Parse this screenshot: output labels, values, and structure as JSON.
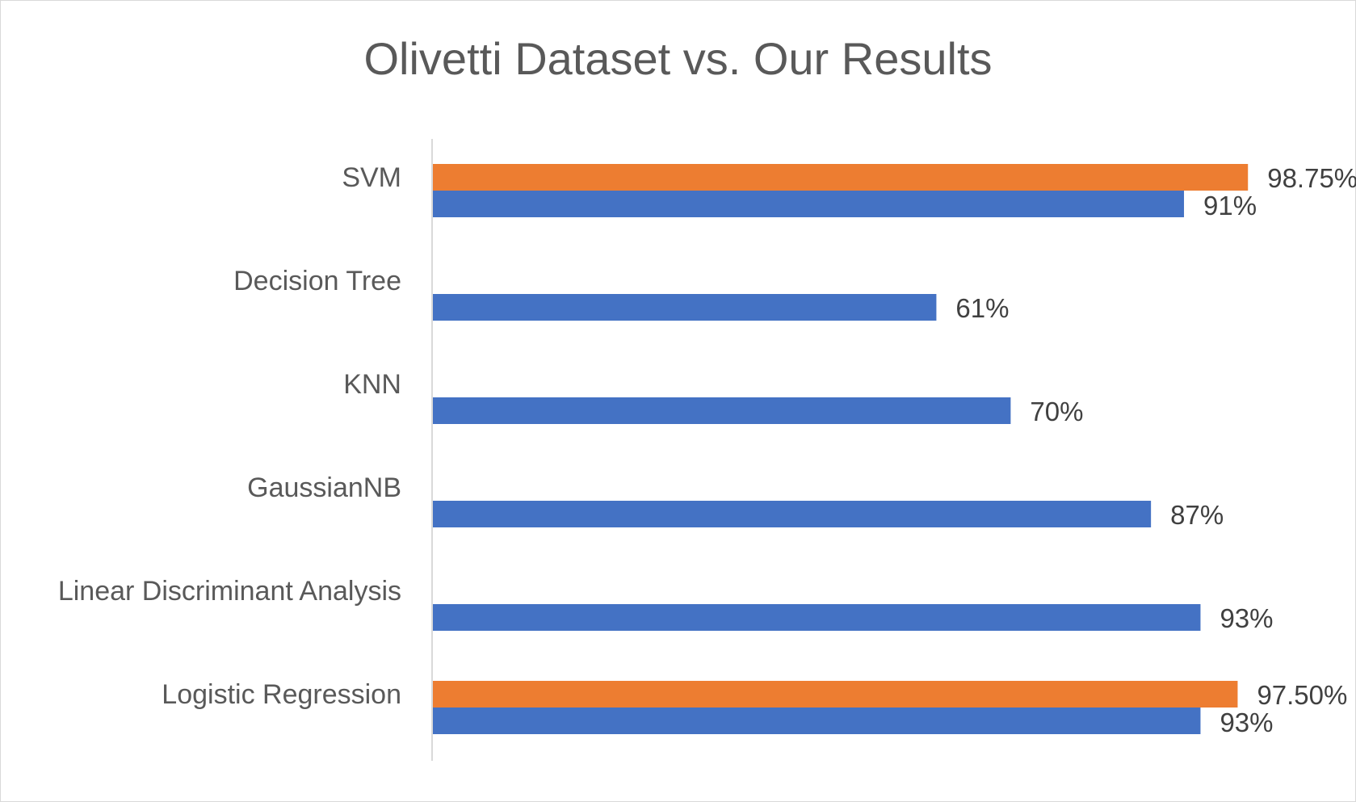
{
  "chart_data": {
    "type": "bar",
    "orientation": "horizontal",
    "title": "Olivetti Dataset vs. Our Results",
    "categories": [
      "SVM",
      "Decision Tree",
      "KNN",
      "GaussianNB",
      "Linear Discriminant Analysis",
      "Logistic Regression"
    ],
    "series": [
      {
        "color": "#4472C4",
        "values": [
          91,
          61,
          70,
          87,
          93,
          93
        ],
        "labels": [
          "91%",
          "61%",
          "70%",
          "87%",
          "93%",
          "93%"
        ]
      },
      {
        "color": "#ED7D31",
        "values": [
          98.75,
          null,
          null,
          null,
          null,
          97.5
        ],
        "labels": [
          "98.75%",
          null,
          null,
          null,
          null,
          "97.50%"
        ]
      }
    ],
    "xlim": [
      0,
      100
    ],
    "grid": false,
    "legend": "none"
  }
}
